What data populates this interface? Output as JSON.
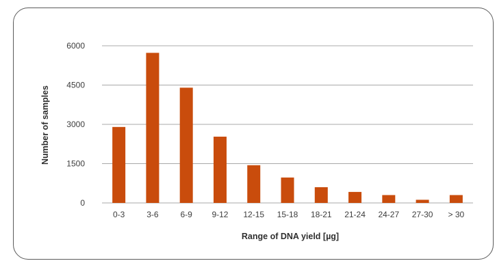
{
  "chart_data": {
    "type": "bar",
    "title": "",
    "xlabel": "Range of DNA yield [µg]",
    "ylabel": "Number of samples",
    "categories": [
      "0-3",
      "3-6",
      "6-9",
      "9-12",
      "12-15",
      "15-18",
      "18-21",
      "21-24",
      "24-27",
      "27-30",
      "> 30"
    ],
    "values": [
      2900,
      5730,
      4400,
      2530,
      1440,
      970,
      600,
      420,
      300,
      120,
      300
    ],
    "ylim": [
      0,
      6000
    ],
    "yticks": [
      0,
      1500,
      3000,
      4500,
      6000
    ],
    "grid": true,
    "legend": "none",
    "bar_color": "#c94c0c",
    "grid_color": "#a8a8a8"
  }
}
